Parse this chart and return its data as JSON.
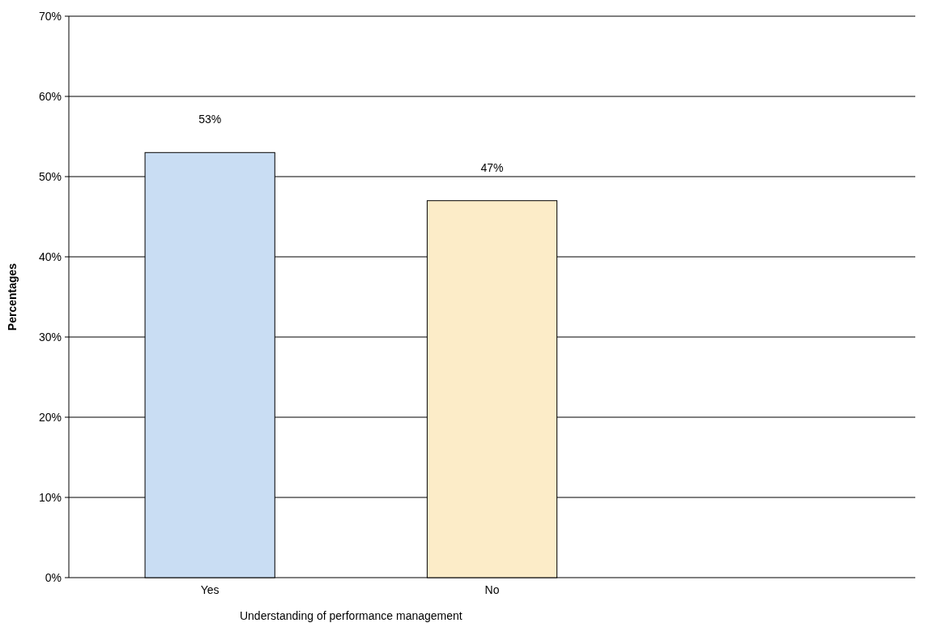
{
  "chart_data": {
    "type": "bar",
    "xlabel": "Understanding of performance management",
    "ylabel": "Percentages",
    "categories": [
      "Yes",
      "No",
      null
    ],
    "values": [
      53,
      47,
      null
    ],
    "colors": [
      "#c9ddf3",
      "#fcecc8",
      null
    ],
    "data_labels": true,
    "value_labels": [
      "53%",
      "47%",
      null
    ],
    "ylim": [
      0,
      70
    ],
    "yticks": [
      {
        "value": 0,
        "label": "0%"
      },
      {
        "value": 10,
        "label": "10%"
      },
      {
        "value": 20,
        "label": "20%"
      },
      {
        "value": 30,
        "label": "30%"
      },
      {
        "value": 40,
        "label": "40%"
      },
      {
        "value": 50,
        "label": "50%"
      },
      {
        "value": 60,
        "label": "60%"
      },
      {
        "value": 70,
        "label": "70%"
      }
    ],
    "grid": "y"
  }
}
